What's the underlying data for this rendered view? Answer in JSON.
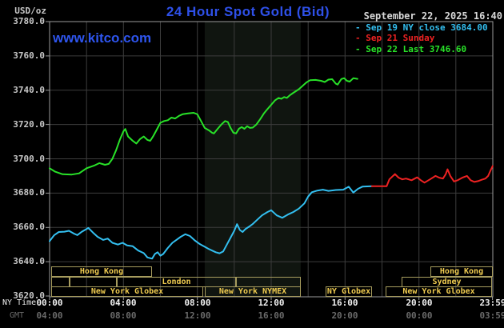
{
  "header": {
    "unit_label": "USD/oz",
    "title": "24 Hour Spot Gold (Bid)",
    "datetime": "September 22, 2025 16:40",
    "watermark": "www.kitco.com"
  },
  "legend": {
    "marker": "-",
    "items": [
      {
        "label": "Sep 19 NY close 3684.00",
        "color": "#33bff0"
      },
      {
        "label": "Sep 21 Sunday",
        "color": "#ee2222"
      },
      {
        "label": "Sep 22 Last 3746.60",
        "color": "#28e228"
      }
    ]
  },
  "axes": {
    "y_tick_labels": [
      "3780.0",
      "3760.0",
      "3740.0",
      "3720.0",
      "3700.0",
      "3680.0",
      "3660.0",
      "3640.0",
      "3620.0"
    ],
    "y_tick_values": [
      3780,
      3760,
      3740,
      3720,
      3700,
      3680,
      3660,
      3640,
      3620
    ],
    "tick_hours": [
      0,
      4,
      8,
      12,
      16,
      20,
      23.983
    ],
    "x_rows": [
      {
        "label": "NY Time",
        "color": "#f0f0f0",
        "ticks": [
          "00:00",
          "04:00",
          "08:00",
          "12:00",
          "16:00",
          "20:00",
          "23:59"
        ]
      },
      {
        "label": "GMT",
        "color": "#6a6a6a",
        "ticks": [
          "04:00",
          "08:00",
          "12:00",
          "16:00",
          "20:00",
          "00:00",
          "03:59"
        ]
      }
    ]
  },
  "sessions": [
    {
      "row": 0,
      "label": "Hong Kong",
      "h1": 0.1,
      "h2": 5.55
    },
    {
      "row": 0,
      "label": "Hong Kong",
      "h1": 20.6,
      "h2": 23.96
    },
    {
      "row": 1,
      "label": "",
      "h1": 0.1,
      "h2": 1.1
    },
    {
      "row": 1,
      "label": "",
      "h1": 1.1,
      "h2": 3.65
    },
    {
      "row": 1,
      "label": "London",
      "h1": 3.65,
      "h2": 10.1
    },
    {
      "row": 1,
      "label": "",
      "h1": 10.1,
      "h2": 13.6
    },
    {
      "row": 1,
      "label": "Sydney",
      "h1": 19.05,
      "h2": 23.96
    },
    {
      "row": 2,
      "label": "New York Globex",
      "h1": 0.1,
      "h2": 8.35
    },
    {
      "row": 2,
      "label": "New York NYMEX",
      "h1": 8.4,
      "h2": 13.6
    },
    {
      "row": 2,
      "label": "NY Globex",
      "h1": 14.95,
      "h2": 17.45
    },
    {
      "row": 2,
      "label": "New York Globex",
      "h1": 18.2,
      "h2": 23.96
    }
  ],
  "chart_data": {
    "type": "line",
    "title": "24 Hour Spot Gold (Bid)",
    "x_unit": "hours_ny_time",
    "xlim": [
      0,
      24
    ],
    "ylim": [
      3620,
      3780
    ],
    "y_grid_step": 20,
    "x_grid_step_hours": 2,
    "band": {
      "x1": 8.4,
      "x2": 13.6,
      "color": "#101510",
      "meaning": "NYMEX session shading"
    },
    "series": [
      {
        "name": "Sep 22 (today)",
        "color": "#28e228",
        "points": [
          [
            0,
            3694.5
          ],
          [
            0.3,
            3692.5
          ],
          [
            0.7,
            3691
          ],
          [
            1.2,
            3690.8
          ],
          [
            1.6,
            3691.5
          ],
          [
            2,
            3694.5
          ],
          [
            2.4,
            3696
          ],
          [
            2.7,
            3697.5
          ],
          [
            3,
            3696.5
          ],
          [
            3.2,
            3697
          ],
          [
            3.4,
            3700
          ],
          [
            3.6,
            3705
          ],
          [
            3.8,
            3711
          ],
          [
            4,
            3716
          ],
          [
            4.1,
            3717.4
          ],
          [
            4.25,
            3713
          ],
          [
            4.5,
            3710.5
          ],
          [
            4.7,
            3708.9
          ],
          [
            4.9,
            3711.5
          ],
          [
            5.1,
            3713
          ],
          [
            5.3,
            3711
          ],
          [
            5.45,
            3710.5
          ],
          [
            5.6,
            3713
          ],
          [
            5.8,
            3717
          ],
          [
            6,
            3721
          ],
          [
            6.2,
            3722
          ],
          [
            6.4,
            3722.5
          ],
          [
            6.6,
            3724
          ],
          [
            6.8,
            3723.5
          ],
          [
            7,
            3725
          ],
          [
            7.2,
            3726
          ],
          [
            7.5,
            3726.5
          ],
          [
            7.8,
            3726.8
          ],
          [
            8,
            3726
          ],
          [
            8.2,
            3722
          ],
          [
            8.4,
            3718
          ],
          [
            8.65,
            3716.4
          ],
          [
            8.8,
            3715.2
          ],
          [
            8.9,
            3714.8
          ],
          [
            9.1,
            3717.5
          ],
          [
            9.3,
            3720
          ],
          [
            9.5,
            3722
          ],
          [
            9.65,
            3721.5
          ],
          [
            9.8,
            3718
          ],
          [
            9.95,
            3715.2
          ],
          [
            10.1,
            3714.8
          ],
          [
            10.25,
            3717.5
          ],
          [
            10.4,
            3718.5
          ],
          [
            10.55,
            3717.5
          ],
          [
            10.7,
            3719
          ],
          [
            10.85,
            3718
          ],
          [
            11,
            3718.2
          ],
          [
            11.2,
            3720
          ],
          [
            11.4,
            3723
          ],
          [
            11.6,
            3726.4
          ],
          [
            11.8,
            3729
          ],
          [
            12,
            3731.5
          ],
          [
            12.2,
            3734
          ],
          [
            12.4,
            3735.5
          ],
          [
            12.55,
            3735
          ],
          [
            12.7,
            3736
          ],
          [
            12.85,
            3735.5
          ],
          [
            13,
            3737
          ],
          [
            13.2,
            3738.5
          ],
          [
            13.5,
            3740.6
          ],
          [
            13.7,
            3742.5
          ],
          [
            13.9,
            3744.5
          ],
          [
            14.1,
            3745.8
          ],
          [
            14.4,
            3746
          ],
          [
            14.7,
            3745.5
          ],
          [
            14.9,
            3744.8
          ],
          [
            15.1,
            3746.2
          ],
          [
            15.3,
            3746.4
          ],
          [
            15.5,
            3743.8
          ],
          [
            15.6,
            3743.3
          ],
          [
            15.8,
            3746.5
          ],
          [
            15.95,
            3747
          ],
          [
            16.1,
            3745.5
          ],
          [
            16.25,
            3745
          ],
          [
            16.45,
            3747
          ],
          [
            16.67,
            3746.6
          ]
        ]
      },
      {
        "name": "Sep 19 (NY close)",
        "color": "#33bff0",
        "points": [
          [
            0,
            3652
          ],
          [
            0.25,
            3655.5
          ],
          [
            0.5,
            3657.3
          ],
          [
            0.8,
            3657.5
          ],
          [
            1.05,
            3658
          ],
          [
            1.3,
            3656.5
          ],
          [
            1.5,
            3655.5
          ],
          [
            1.75,
            3657.5
          ],
          [
            2.1,
            3659.7
          ],
          [
            2.35,
            3657
          ],
          [
            2.6,
            3654.5
          ],
          [
            2.9,
            3652.7
          ],
          [
            3.15,
            3653.5
          ],
          [
            3.4,
            3651
          ],
          [
            3.7,
            3650
          ],
          [
            3.95,
            3651
          ],
          [
            4.2,
            3649.5
          ],
          [
            4.5,
            3649
          ],
          [
            4.8,
            3646.5
          ],
          [
            5.1,
            3645
          ],
          [
            5.3,
            3642.5
          ],
          [
            5.55,
            3641.8
          ],
          [
            5.7,
            3644.5
          ],
          [
            5.85,
            3645.5
          ],
          [
            6,
            3643.5
          ],
          [
            6.15,
            3644.5
          ],
          [
            6.4,
            3648
          ],
          [
            6.65,
            3651
          ],
          [
            6.9,
            3653
          ],
          [
            7.1,
            3654.5
          ],
          [
            7.35,
            3656
          ],
          [
            7.6,
            3655
          ],
          [
            7.85,
            3652.5
          ],
          [
            8.1,
            3650.5
          ],
          [
            8.35,
            3649
          ],
          [
            8.6,
            3647.5
          ],
          [
            8.8,
            3646.5
          ],
          [
            9,
            3645.5
          ],
          [
            9.2,
            3644.9
          ],
          [
            9.4,
            3646
          ],
          [
            9.6,
            3650
          ],
          [
            9.8,
            3654
          ],
          [
            10,
            3658
          ],
          [
            10.15,
            3661.9
          ],
          [
            10.3,
            3658.5
          ],
          [
            10.45,
            3657.3
          ],
          [
            10.6,
            3659
          ],
          [
            10.8,
            3660.4
          ],
          [
            11,
            3662
          ],
          [
            11.2,
            3664
          ],
          [
            11.5,
            3667
          ],
          [
            11.8,
            3669
          ],
          [
            12,
            3670
          ],
          [
            12.3,
            3667
          ],
          [
            12.6,
            3665.6
          ],
          [
            12.9,
            3667.5
          ],
          [
            13.2,
            3669
          ],
          [
            13.5,
            3671
          ],
          [
            13.8,
            3674
          ],
          [
            14,
            3678
          ],
          [
            14.2,
            3680.5
          ],
          [
            14.5,
            3681.5
          ],
          [
            14.8,
            3682
          ],
          [
            15.1,
            3681.3
          ],
          [
            15.5,
            3681.8
          ],
          [
            15.9,
            3682
          ],
          [
            16.2,
            3683.7
          ],
          [
            16.45,
            3680.3
          ],
          [
            16.7,
            3682.5
          ],
          [
            16.95,
            3683.8
          ],
          [
            17.45,
            3684
          ]
        ]
      },
      {
        "name": "Sep 21 (Sunday)",
        "color": "#ee2222",
        "points": [
          [
            17.45,
            3684
          ],
          [
            18.25,
            3684
          ],
          [
            18.4,
            3688
          ],
          [
            18.7,
            3691.1
          ],
          [
            18.9,
            3689
          ],
          [
            19.1,
            3688
          ],
          [
            19.3,
            3688.5
          ],
          [
            19.6,
            3687.5
          ],
          [
            19.9,
            3689.2
          ],
          [
            20.1,
            3687.5
          ],
          [
            20.3,
            3686.1
          ],
          [
            20.6,
            3688
          ],
          [
            20.9,
            3690
          ],
          [
            21.1,
            3689
          ],
          [
            21.3,
            3688.5
          ],
          [
            21.45,
            3691
          ],
          [
            21.55,
            3693.9
          ],
          [
            21.7,
            3690
          ],
          [
            21.9,
            3686.8
          ],
          [
            22.1,
            3687.5
          ],
          [
            22.35,
            3689
          ],
          [
            22.6,
            3690
          ],
          [
            22.8,
            3687.5
          ],
          [
            23,
            3686.5
          ],
          [
            23.2,
            3687
          ],
          [
            23.4,
            3687.8
          ],
          [
            23.6,
            3688.5
          ],
          [
            23.75,
            3690
          ],
          [
            23.85,
            3692.5
          ],
          [
            23.99,
            3695.8
          ]
        ]
      }
    ],
    "colors": {
      "grid": "#3c3c3c",
      "border": "#9a9a9a",
      "session_box": "#a79c5e",
      "session_text": "#f0cc50"
    }
  }
}
